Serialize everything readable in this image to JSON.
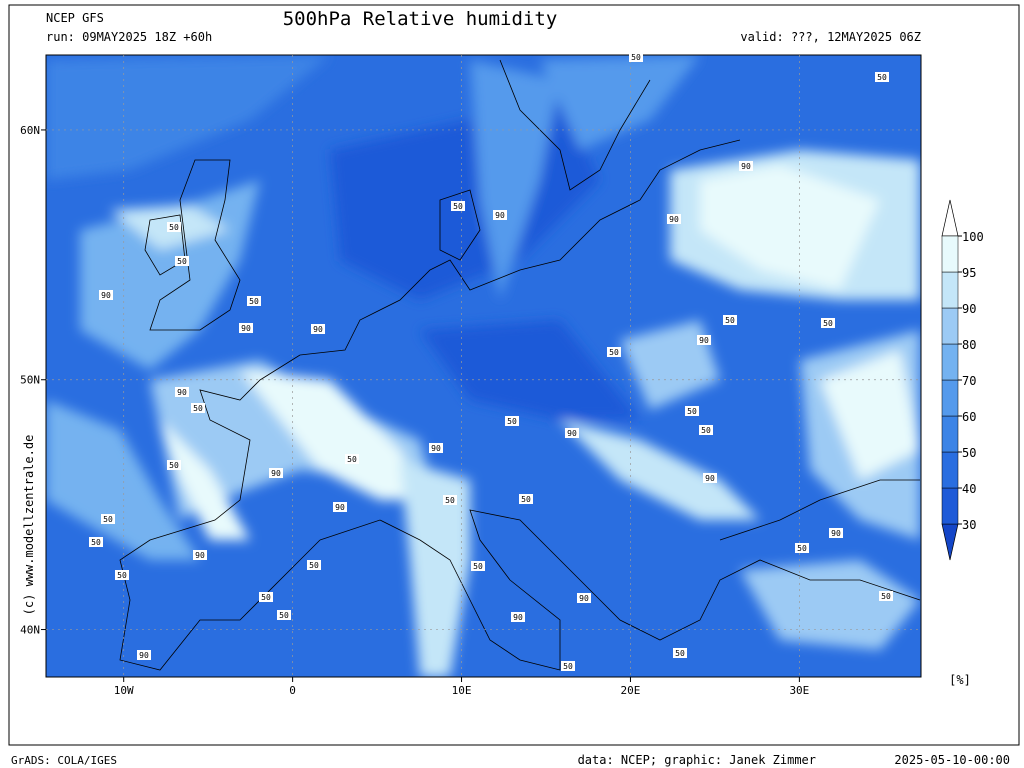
{
  "header": {
    "model": "NCEP GFS",
    "run": "run: 09MAY2025 18Z +60h",
    "title": "500hPa Relative humidity",
    "valid": "valid: ???, 12MAY2025 06Z"
  },
  "map": {
    "lon_range": [
      -14.6,
      37.2
    ],
    "lat_range": [
      38.1,
      63
    ],
    "lon_ticks": [
      {
        "value": -10,
        "label": "10W"
      },
      {
        "value": 0,
        "label": "0"
      },
      {
        "value": 10,
        "label": "10E"
      },
      {
        "value": 20,
        "label": "20E"
      },
      {
        "value": 30,
        "label": "30E"
      }
    ],
    "lat_ticks": [
      {
        "value": 60,
        "label": "60N"
      },
      {
        "value": 50,
        "label": "50N"
      },
      {
        "value": 40,
        "label": "40N"
      }
    ],
    "contour_labels": [
      50,
      50,
      90,
      50,
      90,
      90,
      50,
      50,
      90,
      50,
      90,
      90,
      50,
      50,
      50,
      90,
      50,
      90,
      50,
      50,
      90,
      50,
      90,
      50,
      50,
      90,
      50,
      90,
      90,
      50,
      50,
      50,
      90,
      50,
      50,
      90,
      50,
      50,
      50,
      90,
      50,
      90,
      50,
      90,
      50,
      50
    ]
  },
  "colorbar": {
    "levels": [
      30,
      40,
      50,
      60,
      70,
      80,
      90,
      95,
      100
    ],
    "colors": [
      "#1446c8",
      "#1e5ad8",
      "#2a6ee0",
      "#3c84e6",
      "#559aec",
      "#74b2f0",
      "#9ccaf4",
      "#c4e6f8",
      "#e8fafc",
      "#ffffff"
    ],
    "unit": "[%]"
  },
  "credit": "(c) www.modellzentrale.de",
  "footer": {
    "software": "GrADS: COLA/IGES",
    "source": "data: NCEP; graphic: Janek Zimmer",
    "date": "2025-05-10-00:00"
  }
}
